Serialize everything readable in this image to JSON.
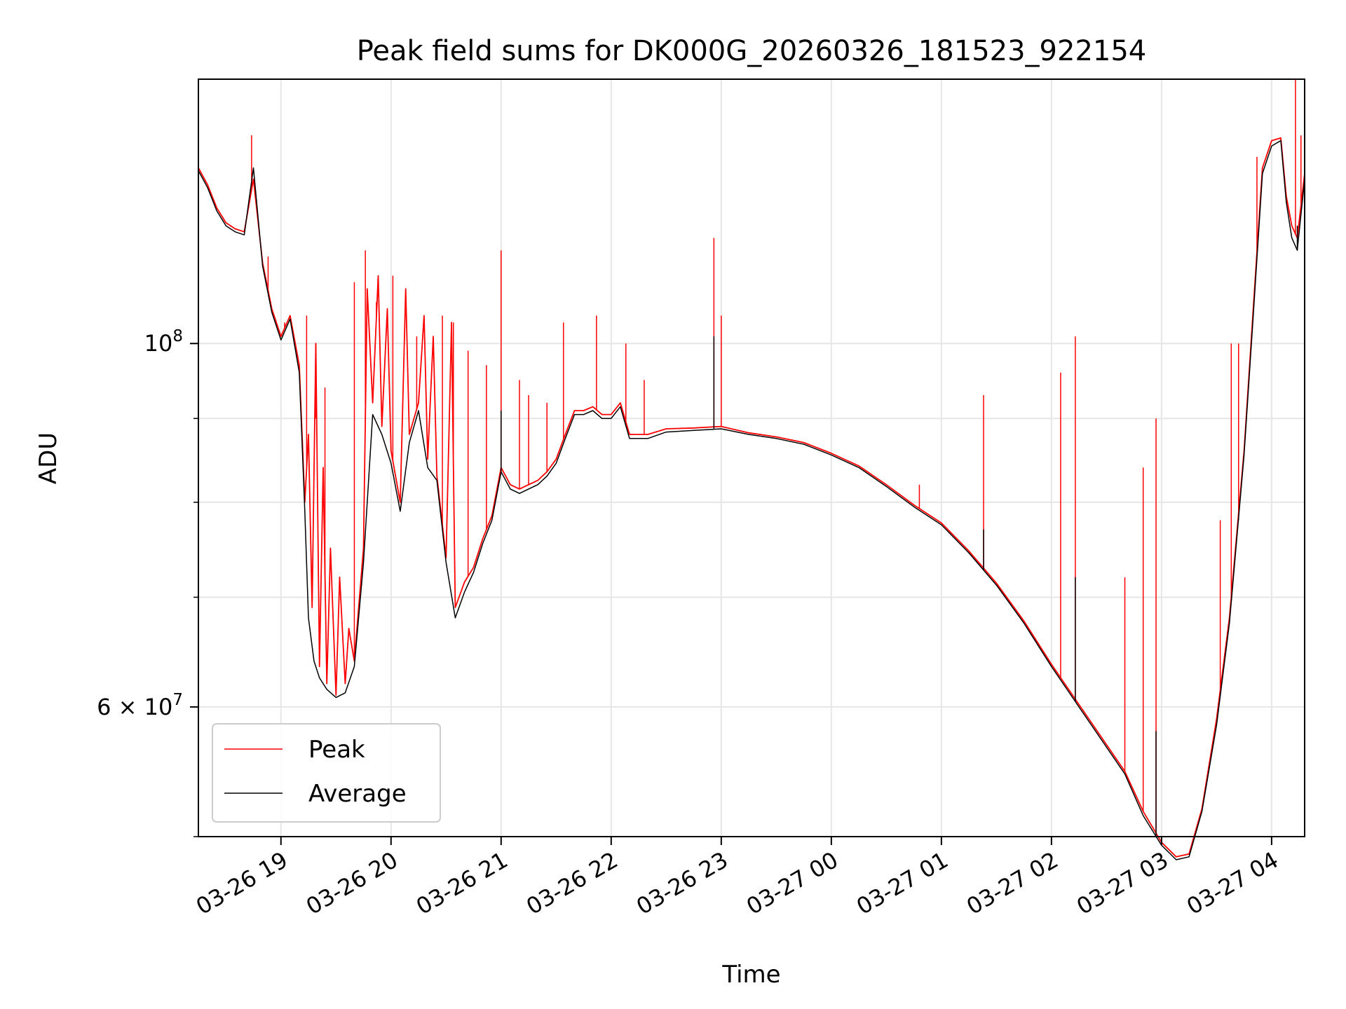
{
  "chart_data": {
    "type": "line",
    "title": "Peak field sums for DK000G_20260326_181523_922154",
    "xlabel": "Time",
    "ylabel": "ADU",
    "yscale": "log",
    "grid": true,
    "legend_position": "lower-left",
    "xlim": [
      "2026-03-26 18:15",
      "2026-03-27 04:18"
    ],
    "ylim": [
      50000000,
      145000000
    ],
    "x_ticks": [
      {
        "value": "2026-03-26 19:00",
        "label": "03-26 19"
      },
      {
        "value": "2026-03-26 20:00",
        "label": "03-26 20"
      },
      {
        "value": "2026-03-26 21:00",
        "label": "03-26 21"
      },
      {
        "value": "2026-03-26 22:00",
        "label": "03-26 22"
      },
      {
        "value": "2026-03-26 23:00",
        "label": "03-26 23"
      },
      {
        "value": "2026-03-27 00:00",
        "label": "03-27 00"
      },
      {
        "value": "2026-03-27 01:00",
        "label": "03-27 01"
      },
      {
        "value": "2026-03-27 02:00",
        "label": "03-27 02"
      },
      {
        "value": "2026-03-27 03:00",
        "label": "03-27 03"
      },
      {
        "value": "2026-03-27 04:00",
        "label": "03-27 04"
      }
    ],
    "y_major_ticks": [
      {
        "value": 100000000,
        "label_base": "10",
        "label_exp": "8"
      },
      {
        "value": 60000000,
        "label_base": "6 × 10",
        "label_exp": "7"
      }
    ],
    "y_minor_ticks": [
      50000000,
      60000000,
      70000000,
      80000000,
      90000000,
      100000000
    ],
    "series": [
      {
        "name": "Peak",
        "color": "#ff0000",
        "points": [
          [
            "2026-03-26 18:15",
            128000000
          ],
          [
            "2026-03-26 18:20",
            125000000
          ],
          [
            "2026-03-26 18:25",
            121000000
          ],
          [
            "2026-03-26 18:30",
            118500000
          ],
          [
            "2026-03-26 18:35",
            117500000
          ],
          [
            "2026-03-26 18:40",
            117000000
          ],
          [
            "2026-03-26 18:45",
            126000000
          ],
          [
            "2026-03-26 18:50",
            112000000
          ],
          [
            "2026-03-26 18:55",
            105000000
          ],
          [
            "2026-03-26 19:00",
            101000000
          ],
          [
            "2026-03-26 19:05",
            104000000
          ],
          [
            "2026-03-26 19:10",
            97000000
          ],
          [
            "2026-03-26 19:13",
            80000000
          ],
          [
            "2026-03-26 19:15",
            88000000
          ],
          [
            "2026-03-26 19:17",
            69000000
          ],
          [
            "2026-03-26 19:19",
            100000000
          ],
          [
            "2026-03-26 19:21",
            63500000
          ],
          [
            "2026-03-26 19:23",
            84000000
          ],
          [
            "2026-03-26 19:25",
            62000000
          ],
          [
            "2026-03-26 19:27",
            75000000
          ],
          [
            "2026-03-26 19:30",
            61000000
          ],
          [
            "2026-03-26 19:32",
            72000000
          ],
          [
            "2026-03-26 19:35",
            62000000
          ],
          [
            "2026-03-26 19:37",
            67000000
          ],
          [
            "2026-03-26 19:40",
            64000000
          ],
          [
            "2026-03-26 19:45",
            75000000
          ],
          [
            "2026-03-26 19:47",
            108000000
          ],
          [
            "2026-03-26 19:50",
            92000000
          ],
          [
            "2026-03-26 19:53",
            110000000
          ],
          [
            "2026-03-26 19:55",
            89000000
          ],
          [
            "2026-03-26 19:58",
            105000000
          ],
          [
            "2026-03-26 20:00",
            86000000
          ],
          [
            "2026-03-26 20:05",
            80000000
          ],
          [
            "2026-03-26 20:08",
            108000000
          ],
          [
            "2026-03-26 20:10",
            88000000
          ],
          [
            "2026-03-26 20:15",
            92000000
          ],
          [
            "2026-03-26 20:18",
            104000000
          ],
          [
            "2026-03-26 20:20",
            85000000
          ],
          [
            "2026-03-26 20:23",
            101000000
          ],
          [
            "2026-03-26 20:25",
            83000000
          ],
          [
            "2026-03-26 20:30",
            74000000
          ],
          [
            "2026-03-26 20:33",
            103000000
          ],
          [
            "2026-03-26 20:35",
            69000000
          ],
          [
            "2026-03-26 20:40",
            71500000
          ],
          [
            "2026-03-26 20:45",
            73000000
          ],
          [
            "2026-03-26 20:50",
            76000000
          ],
          [
            "2026-03-26 20:55",
            78500000
          ],
          [
            "2026-03-26 21:00",
            84000000
          ],
          [
            "2026-03-26 21:05",
            82000000
          ],
          [
            "2026-03-26 21:10",
            81500000
          ],
          [
            "2026-03-26 21:15",
            82000000
          ],
          [
            "2026-03-26 21:20",
            82500000
          ],
          [
            "2026-03-26 21:25",
            83500000
          ],
          [
            "2026-03-26 21:30",
            85000000
          ],
          [
            "2026-03-26 21:35",
            88000000
          ],
          [
            "2026-03-26 21:40",
            91000000
          ],
          [
            "2026-03-26 21:45",
            91000000
          ],
          [
            "2026-03-26 21:50",
            91500000
          ],
          [
            "2026-03-26 21:55",
            90500000
          ],
          [
            "2026-03-26 22:00",
            90500000
          ],
          [
            "2026-03-26 22:05",
            92000000
          ],
          [
            "2026-03-26 22:10",
            88000000
          ],
          [
            "2026-03-26 22:20",
            88000000
          ],
          [
            "2026-03-26 22:30",
            88700000
          ],
          [
            "2026-03-26 22:45",
            88800000
          ],
          [
            "2026-03-26 23:00",
            89000000
          ],
          [
            "2026-03-26 23:15",
            88200000
          ],
          [
            "2026-03-26 23:30",
            87700000
          ],
          [
            "2026-03-26 23:45",
            87000000
          ],
          [
            "2026-03-27 00:00",
            85700000
          ],
          [
            "2026-03-27 00:15",
            84200000
          ],
          [
            "2026-03-27 00:30",
            82000000
          ],
          [
            "2026-03-27 00:45",
            79700000
          ],
          [
            "2026-03-27 01:00",
            77700000
          ],
          [
            "2026-03-27 01:15",
            74700000
          ],
          [
            "2026-03-27 01:30",
            71400000
          ],
          [
            "2026-03-27 01:45",
            67700000
          ],
          [
            "2026-03-27 02:00",
            63700000
          ],
          [
            "2026-03-27 02:15",
            60200000
          ],
          [
            "2026-03-27 02:30",
            56900000
          ],
          [
            "2026-03-27 02:40",
            54800000
          ],
          [
            "2026-03-27 02:50",
            51800000
          ],
          [
            "2026-03-27 03:00",
            49600000
          ],
          [
            "2026-03-27 03:08",
            48600000
          ],
          [
            "2026-03-27 03:15",
            48800000
          ],
          [
            "2026-03-27 03:22",
            52000000
          ],
          [
            "2026-03-27 03:30",
            59000000
          ],
          [
            "2026-03-27 03:37",
            68000000
          ],
          [
            "2026-03-27 03:45",
            86000000
          ],
          [
            "2026-03-27 03:50",
            105000000
          ],
          [
            "2026-03-27 03:55",
            128000000
          ],
          [
            "2026-03-27 04:00",
            133000000
          ],
          [
            "2026-03-27 04:05",
            133500000
          ],
          [
            "2026-03-27 04:08",
            123000000
          ],
          [
            "2026-03-27 04:11",
            118000000
          ],
          [
            "2026-03-27 04:14",
            116000000
          ],
          [
            "2026-03-27 04:18",
            127000000
          ]
        ],
        "spikes": [
          [
            "2026-03-26 18:44",
            134000000
          ],
          [
            "2026-03-26 18:53",
            113000000
          ],
          [
            "2026-03-26 19:02",
            103000000
          ],
          [
            "2026-03-26 19:14",
            104000000
          ],
          [
            "2026-03-26 19:19",
            90000000
          ],
          [
            "2026-03-26 19:24",
            94000000
          ],
          [
            "2026-03-26 19:40",
            109000000
          ],
          [
            "2026-03-26 19:46",
            114000000
          ],
          [
            "2026-03-26 19:52",
            106000000
          ],
          [
            "2026-03-26 20:01",
            110000000
          ],
          [
            "2026-03-26 20:14",
            101000000
          ],
          [
            "2026-03-26 20:28",
            104000000
          ],
          [
            "2026-03-26 20:34",
            103000000
          ],
          [
            "2026-03-26 20:42",
            99000000
          ],
          [
            "2026-03-26 20:52",
            97000000
          ],
          [
            "2026-03-26 21:00",
            114000000
          ],
          [
            "2026-03-26 21:10",
            95000000
          ],
          [
            "2026-03-26 21:15",
            93000000
          ],
          [
            "2026-03-26 21:25",
            92000000
          ],
          [
            "2026-03-26 21:34",
            103000000
          ],
          [
            "2026-03-26 21:52",
            104000000
          ],
          [
            "2026-03-26 22:08",
            100000000
          ],
          [
            "2026-03-26 22:18",
            95000000
          ],
          [
            "2026-03-26 22:56",
            116000000
          ],
          [
            "2026-03-26 23:00",
            104000000
          ],
          [
            "2026-03-27 00:48",
            82000000
          ],
          [
            "2026-03-27 01:23",
            93000000
          ],
          [
            "2026-03-27 02:05",
            96000000
          ],
          [
            "2026-03-27 02:13",
            101000000
          ],
          [
            "2026-03-27 02:40",
            72000000
          ],
          [
            "2026-03-27 02:50",
            84000000
          ],
          [
            "2026-03-27 02:57",
            90000000
          ],
          [
            "2026-03-27 03:32",
            78000000
          ],
          [
            "2026-03-27 03:38",
            100000000
          ],
          [
            "2026-03-27 03:42",
            100000000
          ],
          [
            "2026-03-27 03:52",
            130000000
          ],
          [
            "2026-03-27 04:13",
            145000000
          ],
          [
            "2026-03-27 04:16",
            134000000
          ]
        ]
      },
      {
        "name": "Average",
        "color": "#000000",
        "points": [
          [
            "2026-03-26 18:15",
            127500000
          ],
          [
            "2026-03-26 18:20",
            124500000
          ],
          [
            "2026-03-26 18:25",
            120500000
          ],
          [
            "2026-03-26 18:30",
            118000000
          ],
          [
            "2026-03-26 18:35",
            117000000
          ],
          [
            "2026-03-26 18:40",
            116500000
          ],
          [
            "2026-03-26 18:45",
            128000000
          ],
          [
            "2026-03-26 18:50",
            111500000
          ],
          [
            "2026-03-26 18:55",
            104500000
          ],
          [
            "2026-03-26 19:00",
            100500000
          ],
          [
            "2026-03-26 19:05",
            103500000
          ],
          [
            "2026-03-26 19:10",
            96000000
          ],
          [
            "2026-03-26 19:13",
            79000000
          ],
          [
            "2026-03-26 19:15",
            68000000
          ],
          [
            "2026-03-26 19:18",
            64000000
          ],
          [
            "2026-03-26 19:21",
            62500000
          ],
          [
            "2026-03-26 19:25",
            61500000
          ],
          [
            "2026-03-26 19:30",
            60800000
          ],
          [
            "2026-03-26 19:35",
            61200000
          ],
          [
            "2026-03-26 19:40",
            63500000
          ],
          [
            "2026-03-26 19:45",
            73500000
          ],
          [
            "2026-03-26 19:50",
            90500000
          ],
          [
            "2026-03-26 19:55",
            88000000
          ],
          [
            "2026-03-26 20:00",
            84500000
          ],
          [
            "2026-03-26 20:05",
            79000000
          ],
          [
            "2026-03-26 20:10",
            87000000
          ],
          [
            "2026-03-26 20:15",
            91000000
          ],
          [
            "2026-03-26 20:20",
            84000000
          ],
          [
            "2026-03-26 20:25",
            82500000
          ],
          [
            "2026-03-26 20:30",
            73500000
          ],
          [
            "2026-03-26 20:35",
            68000000
          ],
          [
            "2026-03-26 20:40",
            70500000
          ],
          [
            "2026-03-26 20:45",
            72500000
          ],
          [
            "2026-03-26 20:50",
            75500000
          ],
          [
            "2026-03-26 20:55",
            78000000
          ],
          [
            "2026-03-26 21:00",
            83500000
          ],
          [
            "2026-03-26 21:05",
            81500000
          ],
          [
            "2026-03-26 21:10",
            81000000
          ],
          [
            "2026-03-26 21:15",
            81500000
          ],
          [
            "2026-03-26 21:20",
            82000000
          ],
          [
            "2026-03-26 21:25",
            83000000
          ],
          [
            "2026-03-26 21:30",
            84500000
          ],
          [
            "2026-03-26 21:35",
            87500000
          ],
          [
            "2026-03-26 21:40",
            90500000
          ],
          [
            "2026-03-26 21:45",
            90500000
          ],
          [
            "2026-03-26 21:50",
            91000000
          ],
          [
            "2026-03-26 21:55",
            90000000
          ],
          [
            "2026-03-26 22:00",
            90000000
          ],
          [
            "2026-03-26 22:05",
            91500000
          ],
          [
            "2026-03-26 22:10",
            87500000
          ],
          [
            "2026-03-26 22:20",
            87500000
          ],
          [
            "2026-03-26 22:30",
            88300000
          ],
          [
            "2026-03-26 22:45",
            88500000
          ],
          [
            "2026-03-26 23:00",
            88700000
          ],
          [
            "2026-03-26 23:15",
            88000000
          ],
          [
            "2026-03-26 23:30",
            87500000
          ],
          [
            "2026-03-26 23:45",
            86800000
          ],
          [
            "2026-03-27 00:00",
            85500000
          ],
          [
            "2026-03-27 00:15",
            84000000
          ],
          [
            "2026-03-27 00:30",
            81800000
          ],
          [
            "2026-03-27 00:45",
            79500000
          ],
          [
            "2026-03-27 01:00",
            77500000
          ],
          [
            "2026-03-27 01:15",
            74500000
          ],
          [
            "2026-03-27 01:30",
            71200000
          ],
          [
            "2026-03-27 01:45",
            67500000
          ],
          [
            "2026-03-27 02:00",
            63500000
          ],
          [
            "2026-03-27 02:15",
            60000000
          ],
          [
            "2026-03-27 02:30",
            56700000
          ],
          [
            "2026-03-27 02:40",
            54600000
          ],
          [
            "2026-03-27 02:50",
            51500000
          ],
          [
            "2026-03-27 03:00",
            49400000
          ],
          [
            "2026-03-27 03:08",
            48400000
          ],
          [
            "2026-03-27 03:15",
            48600000
          ],
          [
            "2026-03-27 03:22",
            51800000
          ],
          [
            "2026-03-27 03:30",
            58500000
          ],
          [
            "2026-03-27 03:37",
            67500000
          ],
          [
            "2026-03-27 03:45",
            85500000
          ],
          [
            "2026-03-27 03:50",
            104000000
          ],
          [
            "2026-03-27 03:55",
            127000000
          ],
          [
            "2026-03-27 04:00",
            132000000
          ],
          [
            "2026-03-27 04:05",
            133000000
          ],
          [
            "2026-03-27 04:08",
            122000000
          ],
          [
            "2026-03-27 04:11",
            116000000
          ],
          [
            "2026-03-27 04:14",
            114000000
          ],
          [
            "2026-03-27 04:18",
            126000000
          ]
        ],
        "spikes": [
          [
            "2026-03-26 21:00",
            91000000
          ],
          [
            "2026-03-26 22:56",
            101000000
          ],
          [
            "2026-03-27 01:23",
            77000000
          ],
          [
            "2026-03-27 02:13",
            72000000
          ],
          [
            "2026-03-27 02:57",
            58000000
          ],
          [
            "2026-03-27 03:42",
            78000000
          ],
          [
            "2026-03-27 04:14",
            118000000
          ]
        ]
      }
    ]
  }
}
